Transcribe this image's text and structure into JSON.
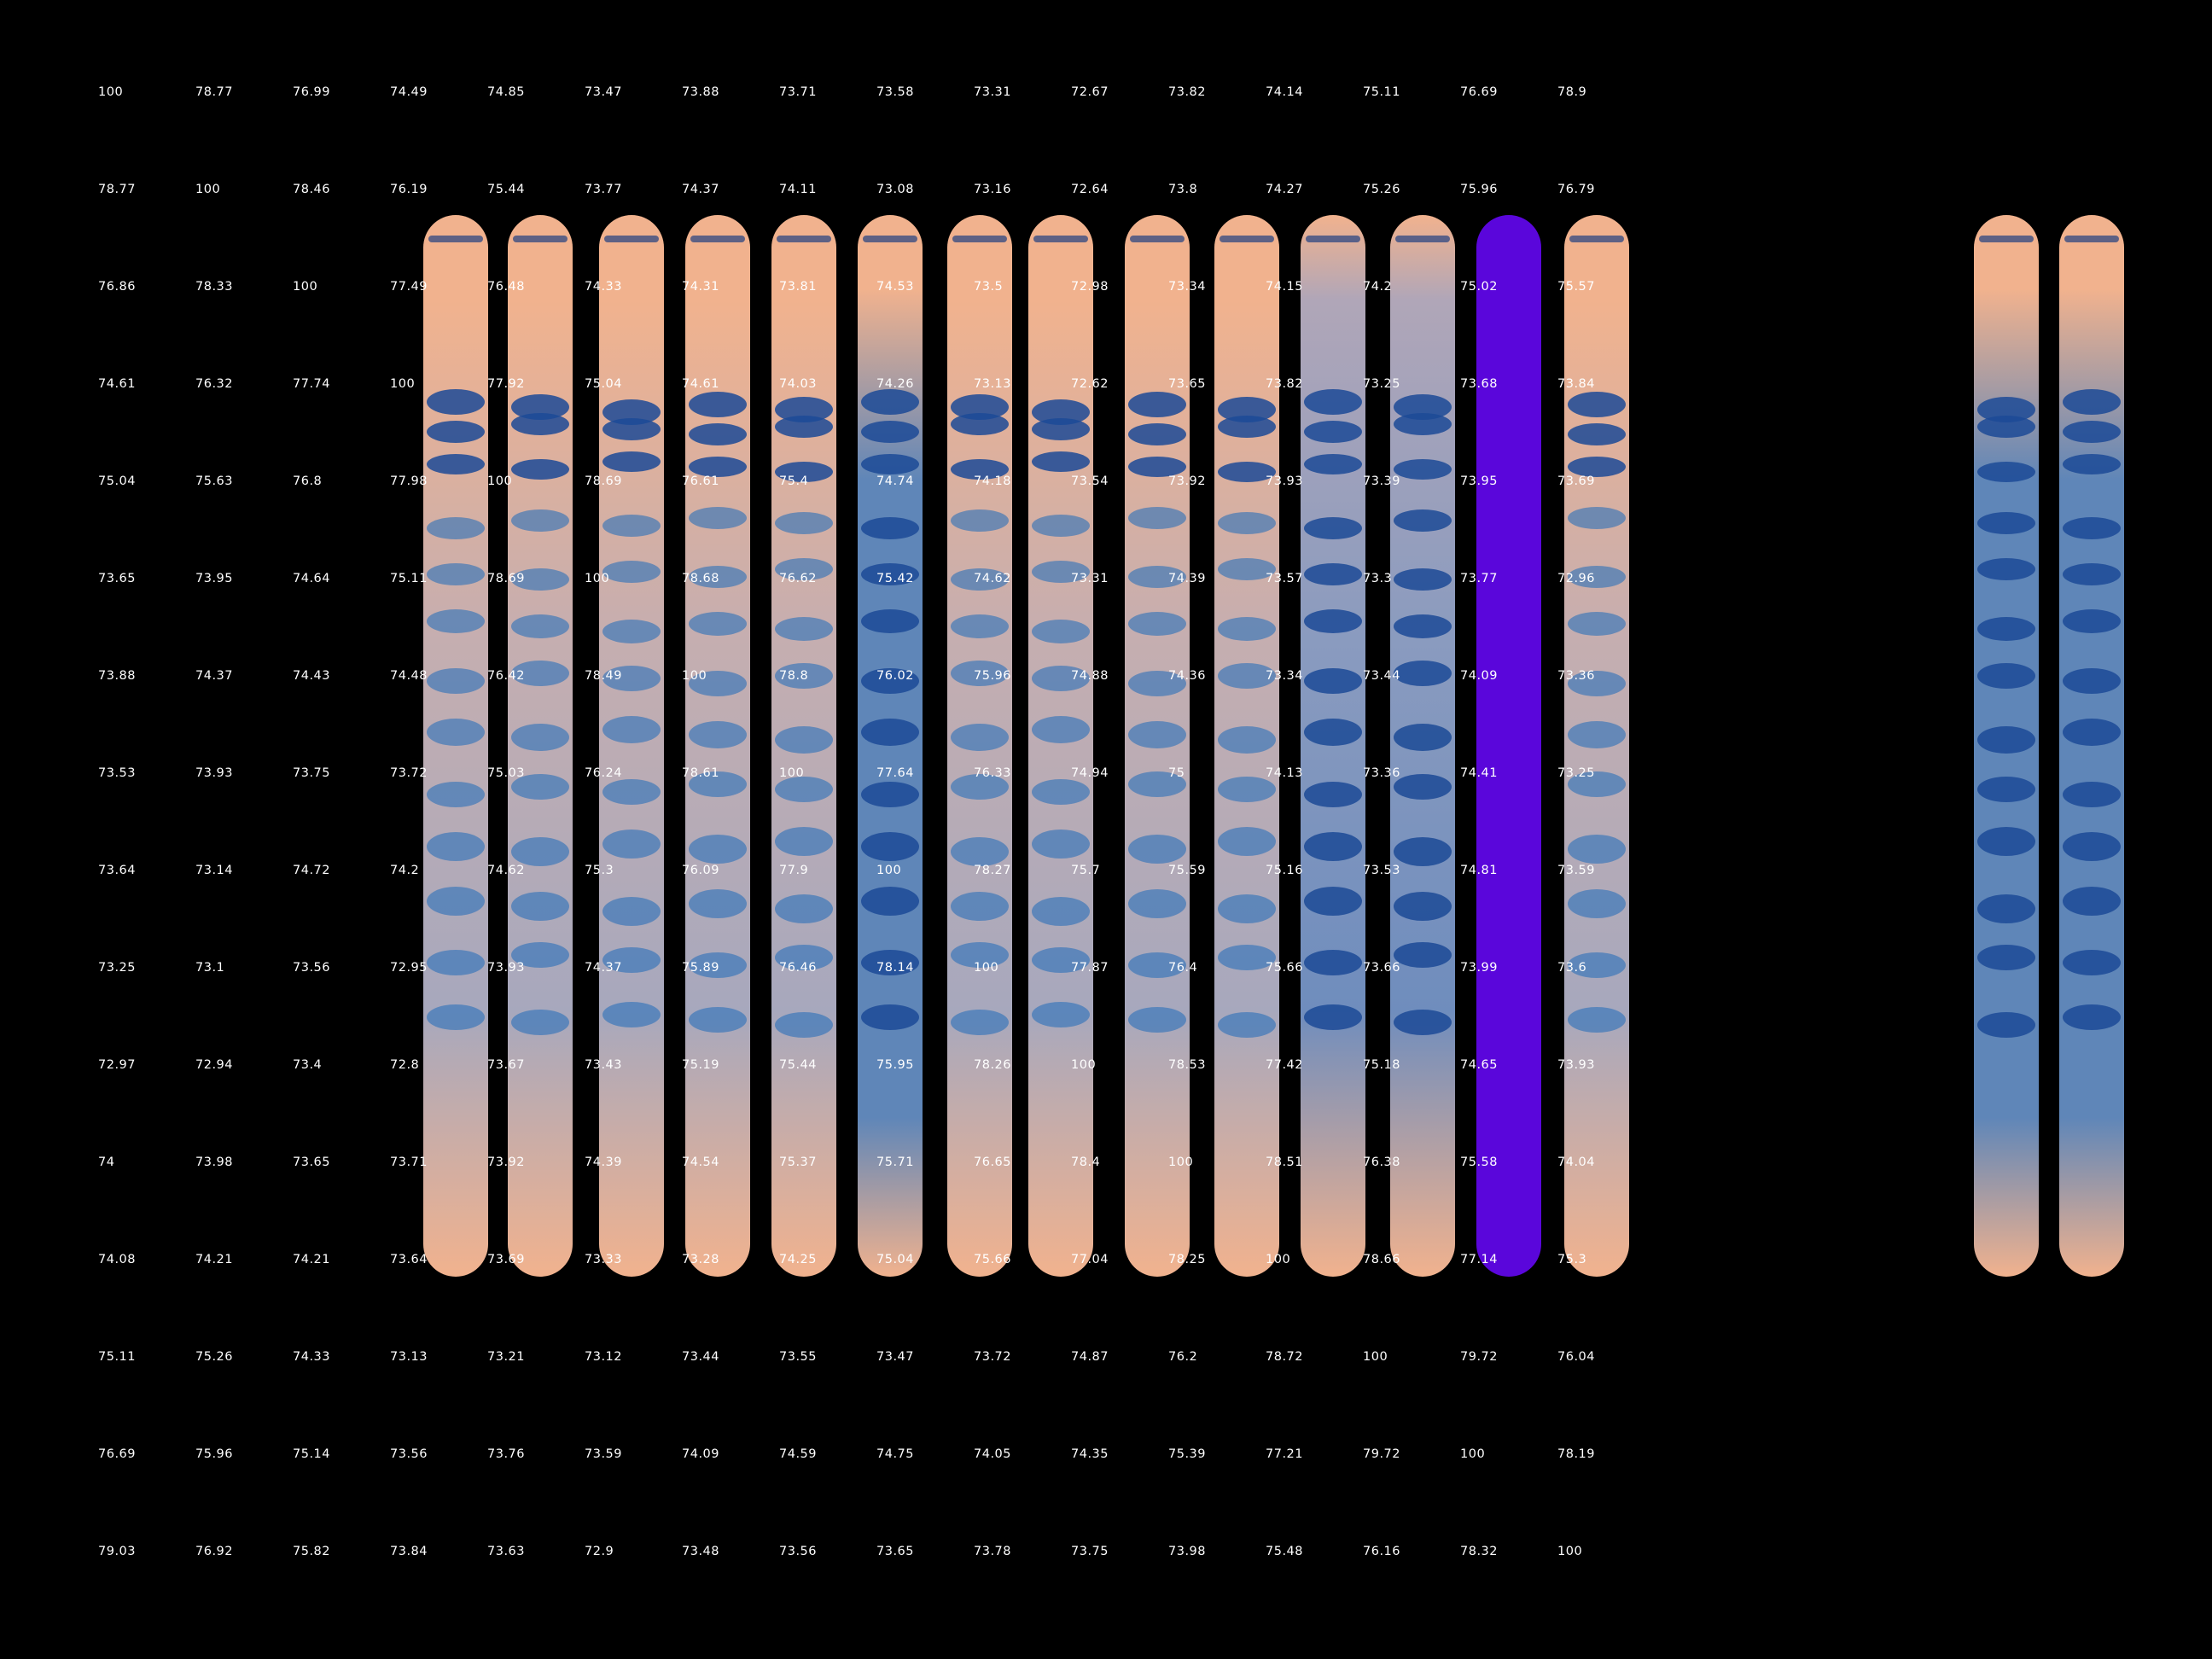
{
  "colors": {
    "background": "#000000",
    "lane_base": "#f1b28e",
    "lane_dense": "#5f86b8",
    "band": "#2a6fb9",
    "band_dark": "#1c4a96",
    "highlight_lane": "#5a06db",
    "text": "#ffffff"
  },
  "similarity_matrix": [
    [
      "100",
      "78.77",
      "76.99",
      "74.49",
      "74.85",
      "73.47",
      "73.88",
      "73.71",
      "73.58",
      "73.31",
      "72.67",
      "73.82",
      "74.14",
      "75.11",
      "76.69",
      "78.9"
    ],
    [
      "78.77",
      "100",
      "78.46",
      "76.19",
      "75.44",
      "73.77",
      "74.37",
      "74.11",
      "73.08",
      "73.16",
      "72.64",
      "73.8",
      "74.27",
      "75.26",
      "75.96",
      "76.79"
    ],
    [
      "76.86",
      "78.33",
      "100",
      "77.49",
      "76.48",
      "74.33",
      "74.31",
      "73.81",
      "74.53",
      "73.5",
      "72.98",
      "73.34",
      "74.15",
      "74.2",
      "75.02",
      "75.57"
    ],
    [
      "74.61",
      "76.32",
      "77.74",
      "100",
      "77.92",
      "75.04",
      "74.61",
      "74.03",
      "74.26",
      "73.13",
      "72.62",
      "73.65",
      "73.82",
      "73.25",
      "73.68",
      "73.84"
    ],
    [
      "75.04",
      "75.63",
      "76.8",
      "77.98",
      "100",
      "78.69",
      "76.61",
      "75.4",
      "74.74",
      "74.18",
      "73.54",
      "73.92",
      "73.93",
      "73.39",
      "73.95",
      "73.69"
    ],
    [
      "73.65",
      "73.95",
      "74.64",
      "75.11",
      "78.69",
      "100",
      "78.68",
      "76.62",
      "75.42",
      "74.62",
      "73.31",
      "74.39",
      "73.57",
      "73.3",
      "73.77",
      "72.96"
    ],
    [
      "73.88",
      "74.37",
      "74.43",
      "74.48",
      "76.42",
      "78.49",
      "100",
      "78.8",
      "76.02",
      "75.96",
      "74.88",
      "74.36",
      "73.34",
      "73.44",
      "74.09",
      "73.36"
    ],
    [
      "73.53",
      "73.93",
      "73.75",
      "73.72",
      "75.03",
      "76.24",
      "78.61",
      "100",
      "77.64",
      "76.33",
      "74.94",
      "75",
      "74.13",
      "73.36",
      "74.41",
      "73.25"
    ],
    [
      "73.64",
      "73.14",
      "74.72",
      "74.2",
      "74.62",
      "75.3",
      "76.09",
      "77.9",
      "100",
      "78.27",
      "75.7",
      "75.59",
      "75.16",
      "73.53",
      "74.81",
      "73.59"
    ],
    [
      "73.25",
      "73.1",
      "73.56",
      "72.95",
      "73.93",
      "74.37",
      "75.89",
      "76.46",
      "78.14",
      "100",
      "77.87",
      "76.4",
      "75.66",
      "73.66",
      "73.99",
      "73.6"
    ],
    [
      "72.97",
      "72.94",
      "73.4",
      "72.8",
      "73.67",
      "73.43",
      "75.19",
      "75.44",
      "75.95",
      "78.26",
      "100",
      "78.53",
      "77.42",
      "75.18",
      "74.65",
      "73.93"
    ],
    [
      "74",
      "73.98",
      "73.65",
      "73.71",
      "73.92",
      "74.39",
      "74.54",
      "75.37",
      "75.71",
      "76.65",
      "78.4",
      "100",
      "78.51",
      "76.38",
      "75.58",
      "74.04"
    ],
    [
      "74.08",
      "74.21",
      "74.21",
      "73.64",
      "73.69",
      "73.33",
      "73.28",
      "74.25",
      "75.04",
      "75.66",
      "77.04",
      "78.25",
      "100",
      "78.66",
      "77.14",
      "75.3"
    ],
    [
      "75.11",
      "75.26",
      "74.33",
      "73.13",
      "73.21",
      "73.12",
      "73.44",
      "73.55",
      "73.47",
      "73.72",
      "74.87",
      "76.2",
      "78.72",
      "100",
      "79.72",
      "76.04"
    ],
    [
      "76.69",
      "75.96",
      "75.14",
      "73.56",
      "73.76",
      "73.59",
      "74.09",
      "74.59",
      "74.75",
      "74.05",
      "74.35",
      "75.39",
      "77.21",
      "79.72",
      "100",
      "78.19"
    ],
    [
      "79.03",
      "76.92",
      "75.82",
      "73.84",
      "73.63",
      "72.9",
      "73.48",
      "73.56",
      "73.65",
      "73.78",
      "73.75",
      "73.98",
      "75.48",
      "76.16",
      "78.32",
      "100"
    ]
  ],
  "gel_lanes": [
    {
      "id": 1,
      "style": "normal"
    },
    {
      "id": 2,
      "style": "normal"
    },
    {
      "id": 3,
      "style": "normal"
    },
    {
      "id": 4,
      "style": "normal"
    },
    {
      "id": 5,
      "style": "normal"
    },
    {
      "id": 6,
      "style": "dense"
    },
    {
      "id": 7,
      "style": "normal"
    },
    {
      "id": 8,
      "style": "normal"
    },
    {
      "id": 9,
      "style": "normal"
    },
    {
      "id": 10,
      "style": "normal"
    },
    {
      "id": 11,
      "style": "dark"
    },
    {
      "id": 12,
      "style": "dark"
    },
    {
      "id": 13,
      "style": "selected"
    },
    {
      "id": 14,
      "style": "normal"
    },
    {
      "id": 15,
      "style": "dense"
    },
    {
      "id": 16,
      "style": "dense"
    }
  ]
}
